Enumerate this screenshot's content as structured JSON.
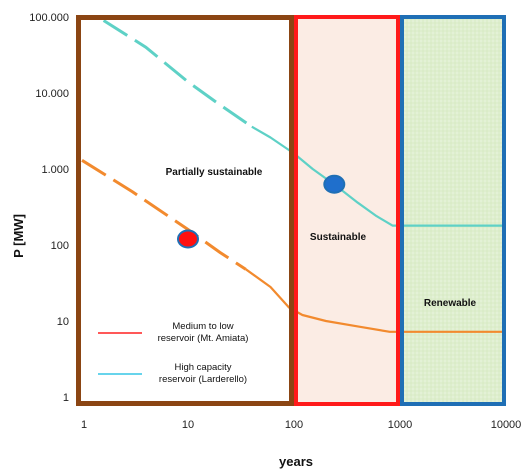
{
  "chart_data": {
    "type": "line",
    "xlabel": "years",
    "ylabel": "P [MW]",
    "x_scale": "log",
    "y_scale": "log",
    "xlim": [
      1,
      10000
    ],
    "ylim": [
      1,
      100000
    ],
    "x_ticks": [
      {
        "value": 1,
        "label": "1"
      },
      {
        "value": 10,
        "label": "10"
      },
      {
        "value": 100,
        "label": "100"
      },
      {
        "value": 1000,
        "label": "1000"
      },
      {
        "value": 10000,
        "label": "10000"
      }
    ],
    "y_ticks": [
      {
        "value": 1,
        "label": "1"
      },
      {
        "value": 10,
        "label": "10"
      },
      {
        "value": 100,
        "label": "100"
      },
      {
        "value": 1000,
        "label": "1.000"
      },
      {
        "value": 10000,
        "label": "10.000"
      },
      {
        "value": 100000,
        "label": "100.000"
      }
    ],
    "regions": [
      {
        "label": "Partially sustainable",
        "x_range": [
          1,
          100
        ],
        "border_color": "#8B4513",
        "fill": "#ffffff"
      },
      {
        "label": "Sustainable",
        "x_range": [
          100,
          1000
        ],
        "border_color": "#ff1a1a",
        "fill": "#fbece4"
      },
      {
        "label": "Renewable",
        "x_range": [
          1000,
          10000
        ],
        "border_color": "#1f6fb5",
        "fill": "#e3f1d6"
      }
    ],
    "series": [
      {
        "name": "High capacity reservoir (Larderello)",
        "color": "#5ed1c6",
        "dashed": [
          [
            1.6,
            90000
          ],
          [
            4,
            40000
          ],
          [
            10,
            14000
          ],
          [
            20,
            7000
          ],
          [
            40,
            3600
          ]
        ],
        "solid": [
          [
            40,
            3600
          ],
          [
            60,
            2600
          ],
          [
            100,
            1600
          ],
          [
            150,
            1000
          ],
          [
            250,
            600
          ],
          [
            400,
            360
          ],
          [
            600,
            240
          ],
          [
            850,
            180
          ],
          [
            10000,
            180
          ]
        ]
      },
      {
        "name": "Medium to low reservoir (Mt. Amiata)",
        "color": "#f28a2e",
        "dashed": [
          [
            1,
            1300
          ],
          [
            3,
            500
          ],
          [
            10,
            160
          ],
          [
            20,
            80
          ],
          [
            35,
            48
          ]
        ],
        "solid": [
          [
            35,
            48
          ],
          [
            60,
            28
          ],
          [
            90,
            15
          ],
          [
            120,
            12
          ],
          [
            200,
            10
          ],
          [
            400,
            8.5
          ],
          [
            800,
            7.2
          ],
          [
            10000,
            7.2
          ]
        ]
      }
    ],
    "markers": [
      {
        "x": 10,
        "y": 120,
        "fill": "#ff1010",
        "stroke": "#1f6fb5"
      },
      {
        "x": 240,
        "y": 630,
        "fill": "#1f6fcc",
        "stroke": "#1f6fb5"
      }
    ],
    "legend": {
      "position": "bottom-left",
      "entries": [
        {
          "line1": "Medium to low",
          "line2": "reservoir (Mt. Amiata)",
          "color": "#ff2020"
        },
        {
          "line1": "High capacity",
          "line2": "reservoir (Larderello)",
          "color": "#35c6e6"
        }
      ]
    }
  }
}
